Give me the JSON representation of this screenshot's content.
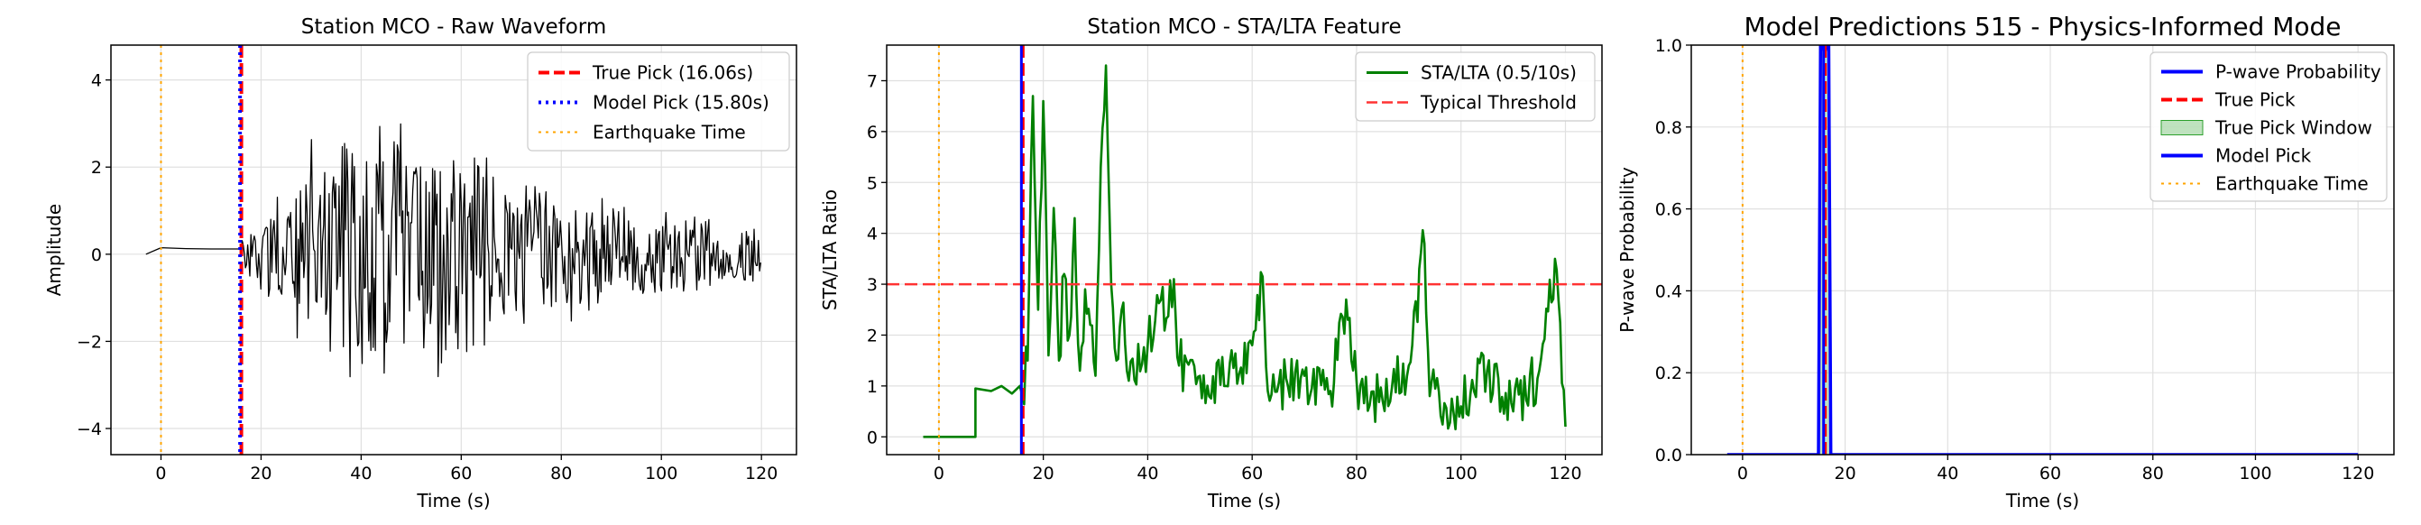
{
  "chart_data": [
    {
      "type": "line",
      "title": "Station MCO - Raw Waveform",
      "xlabel": "Time (s)",
      "ylabel": "Amplitude",
      "xlim": [
        -10,
        127
      ],
      "ylim": [
        -4.6,
        4.8
      ],
      "xticks": [
        0,
        20,
        40,
        60,
        80,
        100,
        120
      ],
      "yticks": [
        -4,
        -2,
        0,
        2,
        4
      ],
      "grid": true,
      "legend_placement": "top-right",
      "series": [
        {
          "name": "",
          "color": "#000000",
          "style": "solid",
          "generator": "waveform",
          "x": [
            -3,
            0,
            5,
            10,
            16
          ],
          "y": [
            0.0,
            0.15,
            0.13,
            0.12,
            0.12
          ],
          "envelope_x": [
            16,
            20,
            25,
            30,
            35,
            40,
            45,
            50,
            55,
            60,
            65,
            70,
            80,
            90,
            100,
            110,
            120
          ],
          "envelope_y": [
            0.4,
            1.0,
            2.0,
            3.0,
            4.2,
            3.8,
            4.0,
            3.4,
            3.2,
            2.8,
            2.4,
            2.0,
            1.8,
            1.4,
            1.1,
            0.9,
            0.7
          ]
        }
      ],
      "vlines": [
        {
          "name": "True Pick (16.06s)",
          "x": 16.06,
          "color": "#ff0000",
          "style": "dashed",
          "width": 4
        },
        {
          "name": "Model Pick (15.80s)",
          "x": 15.8,
          "color": "#0000ff",
          "style": "dotted",
          "width": 4
        },
        {
          "name": "Earthquake Time",
          "x": 0,
          "color": "#ffa500",
          "style": "dotted",
          "width": 2
        }
      ],
      "legend": [
        {
          "label": "True Pick (16.06s)",
          "color": "#ff0000",
          "style": "dashed",
          "width": 4
        },
        {
          "label": "Model Pick (15.80s)",
          "color": "#0000ff",
          "style": "dotted",
          "width": 4
        },
        {
          "label": "Earthquake Time",
          "color": "#ffa500",
          "style": "dotted",
          "width": 2
        }
      ]
    },
    {
      "type": "line",
      "title": "Station MCO - STA/LTA Feature",
      "xlabel": "Time (s)",
      "ylabel": "STA/LTA Ratio",
      "xlim": [
        -10,
        127
      ],
      "ylim": [
        -0.35,
        7.7
      ],
      "xticks": [
        0,
        20,
        40,
        60,
        80,
        100,
        120
      ],
      "yticks": [
        0,
        1,
        2,
        3,
        4,
        5,
        6,
        7
      ],
      "grid": true,
      "legend_placement": "top-right",
      "series": [
        {
          "name": "STA/LTA (0.5/10s)",
          "color": "#008000",
          "style": "solid",
          "generator": "stalta",
          "x": [
            -3,
            7,
            7,
            10,
            12,
            14,
            15.5,
            16,
            17,
            18,
            19,
            20,
            21,
            22,
            23,
            24,
            25,
            26,
            27,
            28,
            29,
            30,
            31,
            32,
            33,
            34,
            35,
            36,
            40,
            45,
            46,
            50,
            55,
            60,
            62,
            63,
            70,
            75,
            78,
            80,
            85,
            90,
            93,
            94,
            100,
            105,
            110,
            115,
            118,
            120
          ],
          "y": [
            0,
            0,
            0.95,
            0.9,
            1.0,
            0.85,
            1.0,
            0.8,
            1.5,
            6.7,
            2.5,
            6.6,
            1.6,
            4.5,
            1.5,
            3.2,
            2.0,
            4.3,
            1.3,
            2.9,
            2.2,
            1.2,
            5.3,
            7.3,
            3.0,
            1.5,
            2.5,
            1.3,
            1.8,
            3.1,
            1.4,
            1.2,
            1.0,
            1.8,
            3.15,
            0.9,
            1.2,
            0.9,
            2.7,
            1.1,
            0.7,
            1.4,
            3.8,
            0.8,
            0.6,
            1.3,
            0.5,
            1.3,
            3.5,
            0.2
          ]
        }
      ],
      "hlines": [
        {
          "name": "Typical Threshold",
          "y": 3.0,
          "color": "#ff3333",
          "style": "dashed",
          "width": 2.5
        }
      ],
      "vlines": [
        {
          "x": 16.06,
          "color": "#ff0000",
          "style": "dashed",
          "width": 4
        },
        {
          "x": 15.8,
          "color": "#0000ff",
          "style": "solid",
          "width": 3
        },
        {
          "x": 0,
          "color": "#ffa500",
          "style": "dotted",
          "width": 2
        }
      ],
      "legend": [
        {
          "label": "STA/LTA (0.5/10s)",
          "color": "#008000",
          "style": "solid",
          "width": 3
        },
        {
          "label": "Typical Threshold",
          "color": "#ff3333",
          "style": "dashed",
          "width": 2.5
        }
      ]
    },
    {
      "type": "line",
      "title": "Model Predictions 515 - Physics-Informed Mode",
      "xlabel": "Time (s)",
      "ylabel": "P-wave Probability",
      "xlim": [
        -10,
        127
      ],
      "ylim": [
        0,
        1.0
      ],
      "xticks": [
        0,
        20,
        40,
        60,
        80,
        100,
        120
      ],
      "yticks": [
        0.0,
        0.2,
        0.4,
        0.6,
        0.8,
        1.0
      ],
      "grid": true,
      "legend_placement": "top-right",
      "series": [
        {
          "name": "P-wave Probability",
          "color": "#0000ff",
          "style": "solid",
          "x": [
            -3,
            14.8,
            15.2,
            15.6,
            16.0,
            16.4,
            16.8,
            17.2,
            120
          ],
          "y": [
            0,
            0,
            1.0,
            1.0,
            0.98,
            1.0,
            1.0,
            0,
            0
          ]
        }
      ],
      "spans": [
        {
          "name": "True Pick Window",
          "x0": 15.06,
          "x1": 17.06,
          "color": "#2ca02c",
          "opacity": 0.3
        }
      ],
      "vlines": [
        {
          "name": "True Pick",
          "x": 16.06,
          "color": "#ff0000",
          "style": "dashed",
          "width": 4
        },
        {
          "name": "Model Pick",
          "x": 15.8,
          "color": "#0000ff",
          "style": "solid",
          "width": 3
        },
        {
          "name": "Earthquake Time",
          "x": 0,
          "color": "#ffa500",
          "style": "dotted",
          "width": 2
        }
      ],
      "legend": [
        {
          "label": "P-wave Probability",
          "color": "#0000ff",
          "style": "solid",
          "width": 4
        },
        {
          "label": "True Pick",
          "color": "#ff0000",
          "style": "dashed",
          "width": 4
        },
        {
          "label": "True Pick Window",
          "color": "#2ca02c",
          "style": "patch",
          "width": 0
        },
        {
          "label": "Model Pick",
          "color": "#0000ff",
          "style": "solid",
          "width": 4
        },
        {
          "label": "Earthquake Time",
          "color": "#ffa500",
          "style": "dotted",
          "width": 2
        }
      ]
    }
  ]
}
